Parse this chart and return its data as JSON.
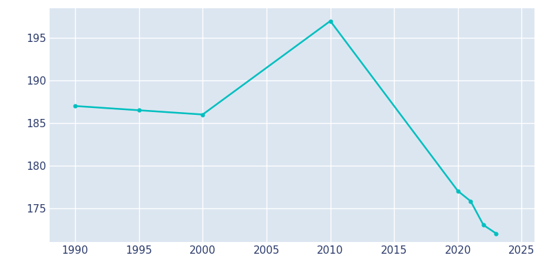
{
  "years": [
    1990,
    1995,
    2000,
    2010,
    2020,
    2021,
    2022,
    2023
  ],
  "population": [
    187.0,
    186.5,
    186.0,
    197.0,
    177.0,
    175.8,
    173.0,
    172.0
  ],
  "line_color": "#00BFBF",
  "bg_color": "#dce6f1",
  "outer_bg": "#ffffff",
  "grid_color": "#ffffff",
  "tick_color": "#2b3a6b",
  "xlim": [
    1988,
    2026
  ],
  "ylim": [
    171,
    198.5
  ],
  "xticks": [
    1990,
    1995,
    2000,
    2005,
    2010,
    2015,
    2020,
    2025
  ],
  "yticks": [
    175,
    180,
    185,
    190,
    195
  ]
}
